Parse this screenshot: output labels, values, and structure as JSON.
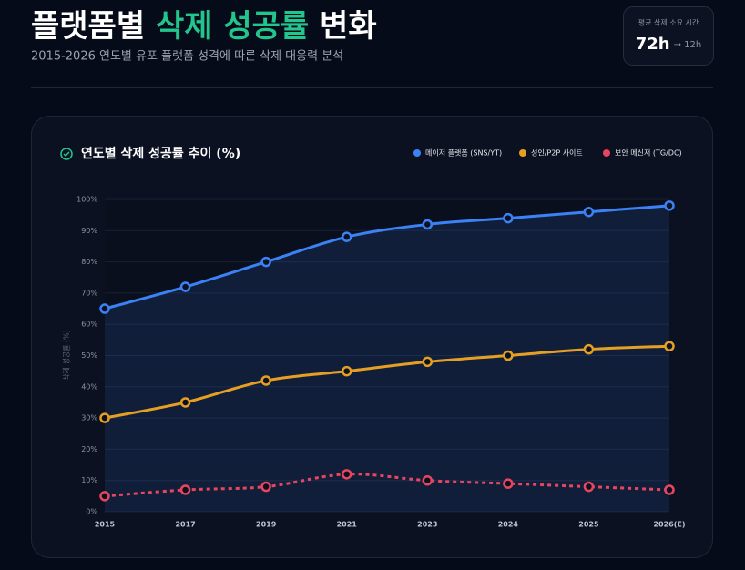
{
  "header": {
    "title_parts": [
      "플랫폼별 ",
      "삭제 성공률",
      " 변화"
    ],
    "subtitle": "2015-2026 연도별 유포 플랫폼 성격에 따른 삭제 대응력 분석",
    "badge": {
      "label": "평균 삭제 소요 시간",
      "value": "72h",
      "change": "→ 12h"
    }
  },
  "chart_data": {
    "type": "line",
    "title": "연도별 삭제 성공률 추이 (%)",
    "y_label": "삭제 성공률 (%)",
    "categories": [
      "2015",
      "2017",
      "2019",
      "2021",
      "2023",
      "2024",
      "2025",
      "2026(E)"
    ],
    "series": [
      {
        "name": "메이저 플랫폼 (SNS/YT)",
        "color": "#3b82f6",
        "values": [
          65,
          72,
          80,
          88,
          92,
          94,
          96,
          98
        ],
        "area": true
      },
      {
        "name": "성인/P2P 사이트",
        "color": "#e5a023",
        "values": [
          30,
          35,
          42,
          45,
          48,
          50,
          52,
          53
        ]
      },
      {
        "name": "보안 메신저 (TG/DC)",
        "color": "#e8455f",
        "values": [
          5,
          7,
          8,
          12,
          10,
          9,
          8,
          7
        ],
        "dashed": true
      }
    ],
    "ylim": [
      0,
      100
    ],
    "yticks": [
      {
        "value": 0,
        "label": "0%"
      },
      {
        "value": 10,
        "label": "10%"
      },
      {
        "value": 20,
        "label": "20%"
      },
      {
        "value": 30,
        "label": "30%"
      },
      {
        "value": 40,
        "label": "40%"
      },
      {
        "value": 50,
        "label": "50%"
      },
      {
        "value": 60,
        "label": "60%"
      },
      {
        "value": 70,
        "label": "70%"
      },
      {
        "value": 80,
        "label": "80%"
      },
      {
        "value": 90,
        "label": "90%"
      },
      {
        "value": 100,
        "label": "100%"
      }
    ],
    "grid": true,
    "legend": "top-right"
  }
}
